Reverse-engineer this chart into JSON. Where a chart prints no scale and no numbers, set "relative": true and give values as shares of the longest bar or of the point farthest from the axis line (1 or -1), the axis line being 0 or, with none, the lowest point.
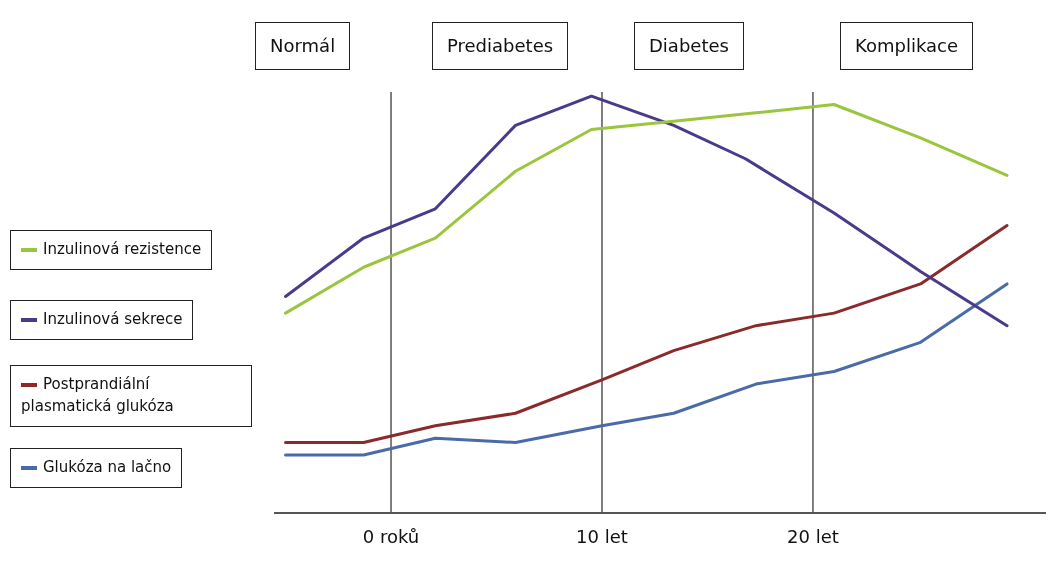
{
  "chart_data": {
    "type": "line",
    "relative": true,
    "xlim": [
      -5.5,
      31
    ],
    "xticks": [
      {
        "value": 0,
        "label": "0 roků"
      },
      {
        "value": 10,
        "label": "10 let"
      },
      {
        "value": 20,
        "label": "20 let"
      }
    ],
    "grid": false,
    "legend": "left",
    "marker": "none",
    "line_style": "solid",
    "annotations": [
      "Normál",
      "Prediabetes",
      "Diabetes",
      "Komplikace"
    ],
    "ref_lines": [
      {
        "axis": "x",
        "value": 0,
        "color": "#555555"
      },
      {
        "axis": "x",
        "value": 10,
        "color": "#555555"
      },
      {
        "axis": "x",
        "value": 20,
        "color": "#555555"
      }
    ],
    "series": [
      {
        "name": "Inzulinová rezistence",
        "color": "#9bc53d",
        "x": [
          -5,
          -1.3,
          2.1,
          5.9,
          9.5,
          13.4,
          17.3,
          21,
          25.1,
          29.2
        ],
        "values": [
          0.48,
          0.59,
          0.66,
          0.82,
          0.92,
          0.94,
          0.96,
          0.98,
          0.9,
          0.81
        ]
      },
      {
        "name": "Inzulinová sekrece",
        "color": "#4b3a8c",
        "x": [
          -5,
          -1.3,
          2.1,
          5.9,
          9.5,
          13.4,
          16.8,
          21,
          25.1,
          29.2
        ],
        "values": [
          0.52,
          0.66,
          0.73,
          0.93,
          1,
          0.93,
          0.85,
          0.72,
          0.58,
          0.45
        ]
      },
      {
        "name": "Postprandiální plasmatická glukóza",
        "color": "#8b2a2a",
        "x": [
          -5,
          -1.3,
          2.1,
          5.9,
          10,
          13.4,
          17.3,
          21,
          25.1,
          29.2
        ],
        "values": [
          0.17,
          0.17,
          0.21,
          0.24,
          0.32,
          0.39,
          0.45,
          0.48,
          0.55,
          0.69
        ]
      },
      {
        "name": "Glukóza na lačno",
        "color": "#4a6aa8",
        "x": [
          -5,
          -1.3,
          2.1,
          5.9,
          10,
          13.4,
          17.3,
          21,
          25.1,
          29.2
        ],
        "values": [
          0.14,
          0.14,
          0.18,
          0.17,
          0.21,
          0.24,
          0.31,
          0.34,
          0.41,
          0.55
        ]
      }
    ]
  }
}
